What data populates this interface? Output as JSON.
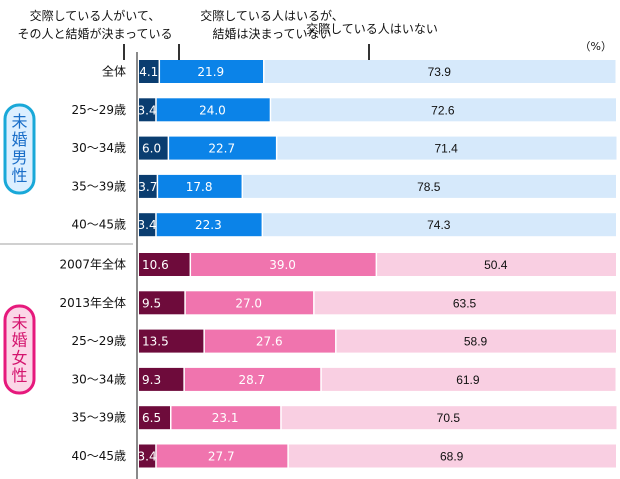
{
  "chart_data": {
    "type": "bar",
    "orientation": "horizontal",
    "stacked": true,
    "unit": "（%）",
    "xlim": [
      0,
      100
    ],
    "legend": [
      {
        "name": "交際している人がいて、その人と結婚が決まっている",
        "lines": [
          "交際している人がいて、",
          "その人と結婚が決まっている"
        ]
      },
      {
        "name": "交際している人はいるが、結婚は決まっていない",
        "lines": [
          "交際している人はいるが、",
          "結婚は決まっていない"
        ]
      },
      {
        "name": "交際している人はいない",
        "lines": [
          "交際している人はいない"
        ]
      }
    ],
    "groups": [
      {
        "label": "未婚男性",
        "colors": [
          "#0a3d70",
          "#0b83e8",
          "#d6e9fb"
        ],
        "badge_border": "#19a8d8",
        "badge_fill": "#dcefff",
        "badge_text": "#1a6ec8",
        "categories": [
          "全体",
          "25〜29歳",
          "30〜34歳",
          "35〜39歳",
          "40〜45歳"
        ],
        "series": [
          {
            "name": "交際している人がいて、その人と結婚が決まっている",
            "values": [
              4.1,
              3.4,
              6.0,
              3.7,
              3.4
            ]
          },
          {
            "name": "交際している人はいるが、結婚は決まっていない",
            "values": [
              21.9,
              24.0,
              22.7,
              17.8,
              22.3
            ]
          },
          {
            "name": "交際している人はいない",
            "values": [
              73.9,
              72.6,
              71.4,
              78.5,
              74.3
            ]
          }
        ]
      },
      {
        "label": "未婚女性",
        "colors": [
          "#6e0b3b",
          "#f074ae",
          "#f9cfe2"
        ],
        "badge_border": "#e6197c",
        "badge_fill": "#fbd6e7",
        "badge_text": "#d4146e",
        "categories": [
          "2007年全体",
          "2013年全体",
          "25〜29歳",
          "30〜34歳",
          "35〜39歳",
          "40〜45歳"
        ],
        "series": [
          {
            "name": "交際している人がいて、その人と結婚が決まっている",
            "values": [
              10.6,
              9.5,
              13.5,
              9.3,
              6.5,
              3.4
            ]
          },
          {
            "name": "交際している人はいるが、結婚は決まっていない",
            "values": [
              39.0,
              27.0,
              27.6,
              28.7,
              23.1,
              27.7
            ]
          },
          {
            "name": "交際している人はいない",
            "values": [
              50.4,
              63.5,
              58.9,
              61.9,
              70.5,
              68.9
            ]
          }
        ]
      }
    ]
  }
}
